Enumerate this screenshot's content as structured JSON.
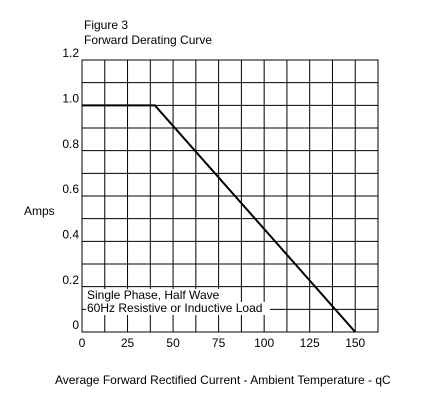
{
  "chart_data": {
    "type": "line",
    "title": "Figure 3",
    "subtitle": "Forward Derating Curve",
    "y_label": "Amps",
    "x_label": "Average Forward Rectified Current - Ambient Temperature  - qC",
    "annotations": [
      "Single Phase, Half Wave",
      "60Hz Resistive or Inductive Load"
    ],
    "x": [
      0,
      40,
      150
    ],
    "series": [
      {
        "values": [
          1.0,
          1.0,
          0
        ],
        "color": "#000000"
      }
    ],
    "xlim": [
      0,
      162.5
    ],
    "xticks": [
      0,
      25,
      50,
      75,
      100,
      125,
      150
    ],
    "xminor": [
      12.5,
      37.5,
      62.5,
      87.5,
      112.5,
      137.5,
      162.5
    ],
    "ylim": [
      0,
      1.2
    ],
    "yticks": [
      0,
      0.2,
      0.4,
      0.6,
      0.8,
      {
        "value": 1,
        "label": "1.0"
      },
      1.2
    ],
    "yminor": [
      0.1,
      0.3,
      0.5,
      0.7,
      0.9,
      1.1
    ],
    "grid": true
  }
}
